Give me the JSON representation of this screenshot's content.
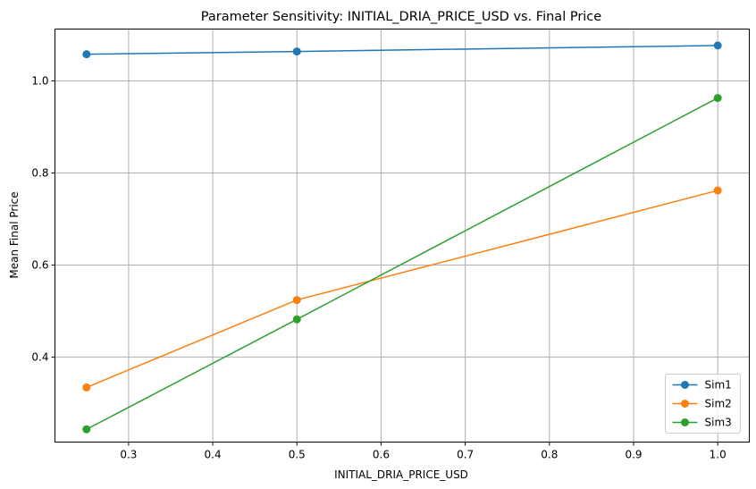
{
  "chart_data": {
    "type": "line",
    "title": "Parameter Sensitivity: INITIAL_DRIA_PRICE_USD vs. Final Price",
    "xlabel": "INITIAL_DRIA_PRICE_USD",
    "ylabel": "Mean Final Price",
    "x": [
      0.25,
      0.5,
      1.0
    ],
    "xlim": [
      0.2125,
      1.0375
    ],
    "ylim": [
      0.2153,
      1.1127
    ],
    "xticks": [
      "0.3",
      "0.4",
      "0.5",
      "0.6",
      "0.7",
      "0.8",
      "0.9",
      "1.0"
    ],
    "yticks": [
      "0.4",
      "0.6",
      "0.8",
      "1.0"
    ],
    "grid": true,
    "legend_position": "lower-right",
    "marker": "circle",
    "series": [
      {
        "name": "Sim1",
        "color": "#1f77b4",
        "values": [
          1.058,
          1.064,
          1.077
        ]
      },
      {
        "name": "Sim2",
        "color": "#ff7f0e",
        "values": [
          0.334,
          0.524,
          0.762
        ]
      },
      {
        "name": "Sim3",
        "color": "#2ca02c",
        "values": [
          0.243,
          0.482,
          0.963
        ]
      }
    ]
  }
}
